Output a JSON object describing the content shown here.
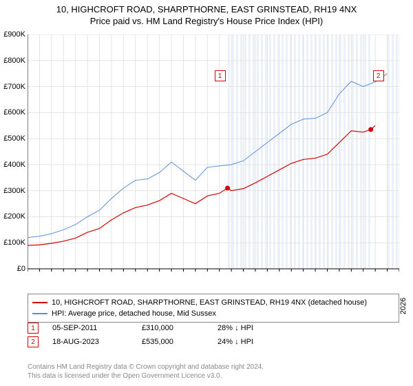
{
  "title": {
    "main": "10, HIGHCROFT ROAD, SHARPTHORNE, EAST GRINSTEAD, RH19 4NX",
    "sub": "Price paid vs. HM Land Registry's House Price Index (HPI)",
    "fontsize": 13,
    "color": "#000000"
  },
  "chart": {
    "type": "line",
    "background_color": "#ffffff",
    "plot_background": "#ffffff",
    "grid_color": "#e3e3e3",
    "axis_color": "#000000",
    "ylim": [
      0,
      900
    ],
    "yticks": [
      0,
      100,
      200,
      300,
      400,
      500,
      600,
      700,
      800,
      900
    ],
    "ytick_labels": [
      "£0",
      "£100K",
      "£200K",
      "£300K",
      "£400K",
      "£500K",
      "£600K",
      "£700K",
      "£800K",
      "£900K"
    ],
    "xlim": [
      1995,
      2026
    ],
    "xticks": [
      1995,
      1996,
      1997,
      1998,
      1999,
      2000,
      2001,
      2002,
      2003,
      2004,
      2005,
      2006,
      2007,
      2008,
      2009,
      2010,
      2011,
      2012,
      2013,
      2014,
      2015,
      2016,
      2017,
      2018,
      2019,
      2020,
      2021,
      2022,
      2023,
      2024,
      2025,
      2026
    ],
    "shaded_regions": [
      {
        "from": 2011.68,
        "to": 2023.63,
        "note": "between sales"
      },
      {
        "from": 2025.0,
        "to": 2026.0,
        "note": "projection"
      }
    ],
    "series": [
      {
        "name": "10, HIGHCROFT ROAD, SHARPTHORNE, EAST GRINSTEAD, RH19 4NX (detached house)",
        "color": "#d40000",
        "line_width": 1.2,
        "data": [
          [
            1995,
            90
          ],
          [
            1996,
            92
          ],
          [
            1997,
            98
          ],
          [
            1998,
            106
          ],
          [
            1999,
            118
          ],
          [
            2000,
            140
          ],
          [
            2001,
            155
          ],
          [
            2002,
            188
          ],
          [
            2003,
            215
          ],
          [
            2004,
            235
          ],
          [
            2005,
            245
          ],
          [
            2006,
            262
          ],
          [
            2007,
            290
          ],
          [
            2008,
            270
          ],
          [
            2009,
            250
          ],
          [
            2010,
            280
          ],
          [
            2011,
            290
          ],
          [
            2011.68,
            310
          ],
          [
            2012,
            300
          ],
          [
            2013,
            308
          ],
          [
            2014,
            330
          ],
          [
            2015,
            355
          ],
          [
            2016,
            380
          ],
          [
            2017,
            405
          ],
          [
            2018,
            420
          ],
          [
            2019,
            425
          ],
          [
            2020,
            440
          ],
          [
            2021,
            485
          ],
          [
            2022,
            530
          ],
          [
            2023,
            525
          ],
          [
            2023.63,
            535
          ],
          [
            2024,
            550
          ]
        ]
      },
      {
        "name": "HPI: Average price, detached house, Mid Sussex",
        "color": "#5a8fd6",
        "line_width": 1.0,
        "data": [
          [
            1995,
            120
          ],
          [
            1996,
            125
          ],
          [
            1997,
            135
          ],
          [
            1998,
            150
          ],
          [
            1999,
            170
          ],
          [
            2000,
            200
          ],
          [
            2001,
            225
          ],
          [
            2002,
            270
          ],
          [
            2003,
            310
          ],
          [
            2004,
            340
          ],
          [
            2005,
            345
          ],
          [
            2006,
            370
          ],
          [
            2007,
            410
          ],
          [
            2008,
            375
          ],
          [
            2009,
            340
          ],
          [
            2010,
            390
          ],
          [
            2011,
            395
          ],
          [
            2012,
            400
          ],
          [
            2013,
            415
          ],
          [
            2014,
            450
          ],
          [
            2015,
            485
          ],
          [
            2016,
            520
          ],
          [
            2017,
            555
          ],
          [
            2018,
            575
          ],
          [
            2019,
            578
          ],
          [
            2020,
            600
          ],
          [
            2021,
            672
          ],
          [
            2022,
            720
          ],
          [
            2023,
            700
          ],
          [
            2024,
            718
          ],
          [
            2025,
            750
          ]
        ]
      }
    ],
    "sale_markers": [
      {
        "label": "1",
        "year": 2011.68,
        "price": 310,
        "color": "#d40000"
      },
      {
        "label": "2",
        "year": 2023.63,
        "price": 535,
        "color": "#d40000"
      }
    ]
  },
  "legend": {
    "items": [
      {
        "color": "#d40000",
        "text": "10, HIGHCROFT ROAD, SHARPTHORNE, EAST GRINSTEAD, RH19 4NX (detached house)"
      },
      {
        "color": "#5a8fd6",
        "text": "HPI: Average price, detached house, Mid Sussex"
      }
    ],
    "fontsize": 11,
    "border_color": "#888888"
  },
  "sales_table": {
    "rows": [
      {
        "marker": "1",
        "marker_color": "#d40000",
        "date": "05-SEP-2011",
        "price": "£310,000",
        "delta": "28% ↓ HPI"
      },
      {
        "marker": "2",
        "marker_color": "#d40000",
        "date": "18-AUG-2023",
        "price": "£535,000",
        "delta": "24% ↓ HPI"
      }
    ],
    "fontsize": 11
  },
  "footer": {
    "line1": "Contains HM Land Registry data © Crown copyright and database right 2024.",
    "line2": "This data is licensed under the Open Government Licence v3.0.",
    "color": "#888888",
    "fontsize": 10
  }
}
